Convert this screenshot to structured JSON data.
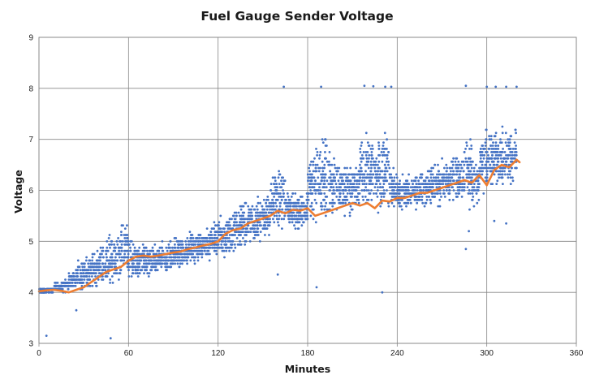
{
  "colors": {
    "scatter": "#4472C4",
    "average": "#ED7D31",
    "grid": "#878787",
    "axis": "#878787"
  },
  "chart_data": {
    "type": "scatter",
    "title": "Fuel Gauge Sender Voltage",
    "xlabel": "Minutes",
    "ylabel": "Voltage",
    "xlim": [
      0,
      360
    ],
    "ylim": [
      3,
      9
    ],
    "x_ticks": [
      0,
      60,
      120,
      180,
      240,
      300,
      360
    ],
    "y_ticks": [
      3,
      4,
      5,
      6,
      7,
      8,
      9
    ],
    "x_tick_labels": [
      "0",
      "60",
      "120",
      "180",
      "240",
      "300",
      "360"
    ],
    "y_tick_labels": [
      "3",
      "4",
      "5",
      "6",
      "7",
      "8",
      "9"
    ],
    "grid": true,
    "legend": "none",
    "series": [
      {
        "type": "scatter",
        "color": "#4472C4",
        "x": [
          0,
          5,
          10,
          15,
          20,
          25,
          30,
          35,
          40,
          45,
          50,
          55,
          60,
          65,
          70,
          75,
          80,
          85,
          90,
          95,
          100,
          105,
          110,
          115,
          120,
          125,
          130,
          135,
          140,
          145,
          150,
          155,
          160,
          165,
          170,
          175,
          180,
          185,
          190,
          195,
          200,
          205,
          210,
          215,
          220,
          225,
          230,
          235,
          240,
          245,
          250,
          255,
          260,
          265,
          270,
          275,
          280,
          285,
          290,
          295,
          300,
          305,
          310,
          315,
          320
        ],
        "y_range_low": [
          3.95,
          4.0,
          4.0,
          4.0,
          4.0,
          4.0,
          4.0,
          4.0,
          4.0,
          4.05,
          4.0,
          4.2,
          4.0,
          4.1,
          4.2,
          4.25,
          4.3,
          4.3,
          4.35,
          4.4,
          4.45,
          4.5,
          4.55,
          4.6,
          4.6,
          4.6,
          4.7,
          4.8,
          4.85,
          4.9,
          5.0,
          5.1,
          5.1,
          5.1,
          5.1,
          5.2,
          5.1,
          5.2,
          5.2,
          5.3,
          5.3,
          5.4,
          5.4,
          5.4,
          5.4,
          5.4,
          5.4,
          5.5,
          5.5,
          5.5,
          5.6,
          5.6,
          5.6,
          5.6,
          5.7,
          5.7,
          5.6,
          5.6,
          5.5,
          5.9,
          5.9,
          5.9,
          5.9,
          5.9,
          5.9
        ],
        "y_range_high": [
          4.1,
          4.1,
          4.2,
          4.3,
          4.5,
          4.7,
          4.8,
          4.9,
          5.0,
          5.2,
          5.3,
          5.45,
          5.2,
          5.1,
          5.0,
          5.0,
          5.05,
          5.1,
          5.2,
          5.25,
          5.3,
          5.3,
          5.35,
          5.45,
          5.6,
          5.7,
          5.8,
          5.85,
          5.9,
          6.0,
          6.0,
          6.65,
          6.6,
          6.1,
          6.0,
          6.0,
          7.0,
          7.2,
          7.3,
          6.9,
          6.8,
          6.7,
          6.7,
          7.3,
          7.3,
          7.3,
          7.3,
          6.5,
          6.4,
          6.4,
          6.4,
          6.5,
          6.6,
          6.6,
          6.7,
          6.8,
          6.8,
          7.2,
          6.8,
          7.3,
          7.3,
          7.3,
          7.35,
          7.3,
          7.3
        ],
        "outliers": [
          {
            "x": 5,
            "y": 3.15
          },
          {
            "x": 48,
            "y": 3.1
          },
          {
            "x": 25,
            "y": 3.65
          },
          {
            "x": 164,
            "y": 8.03
          },
          {
            "x": 189,
            "y": 8.03
          },
          {
            "x": 218,
            "y": 8.05
          },
          {
            "x": 224,
            "y": 8.04
          },
          {
            "x": 232,
            "y": 8.03
          },
          {
            "x": 236,
            "y": 8.03
          },
          {
            "x": 286,
            "y": 8.05
          },
          {
            "x": 300,
            "y": 8.03
          },
          {
            "x": 306,
            "y": 8.03
          },
          {
            "x": 313,
            "y": 8.03
          },
          {
            "x": 320,
            "y": 8.03
          },
          {
            "x": 286,
            "y": 4.85
          },
          {
            "x": 288,
            "y": 5.2
          },
          {
            "x": 305,
            "y": 5.4
          },
          {
            "x": 313,
            "y": 5.35
          },
          {
            "x": 230,
            "y": 4.0
          },
          {
            "x": 186,
            "y": 4.1
          },
          {
            "x": 160,
            "y": 4.35
          }
        ]
      },
      {
        "type": "line",
        "color": "#ED7D31",
        "x": [
          0,
          5,
          10,
          15,
          20,
          25,
          30,
          35,
          40,
          45,
          50,
          55,
          60,
          65,
          70,
          75,
          80,
          85,
          90,
          95,
          100,
          105,
          110,
          115,
          120,
          125,
          130,
          135,
          140,
          145,
          150,
          155,
          160,
          165,
          170,
          175,
          180,
          185,
          190,
          195,
          200,
          205,
          210,
          215,
          220,
          225,
          230,
          235,
          240,
          245,
          250,
          255,
          260,
          265,
          270,
          275,
          280,
          285,
          290,
          295,
          300,
          305,
          310,
          315,
          320,
          322
        ],
        "y": [
          4.02,
          4.04,
          4.05,
          4.03,
          4.0,
          4.05,
          4.1,
          4.2,
          4.3,
          4.4,
          4.45,
          4.5,
          4.62,
          4.7,
          4.72,
          4.7,
          4.72,
          4.75,
          4.78,
          4.8,
          4.85,
          4.88,
          4.92,
          4.95,
          5.0,
          5.15,
          5.22,
          5.25,
          5.35,
          5.4,
          5.45,
          5.5,
          5.6,
          5.55,
          5.62,
          5.6,
          5.65,
          5.5,
          5.55,
          5.6,
          5.65,
          5.7,
          5.75,
          5.7,
          5.75,
          5.65,
          5.8,
          5.78,
          5.85,
          5.85,
          5.9,
          5.95,
          5.95,
          6.0,
          6.05,
          6.1,
          6.15,
          6.2,
          6.15,
          6.3,
          6.1,
          6.4,
          6.5,
          6.45,
          6.6,
          6.55
        ]
      }
    ]
  }
}
